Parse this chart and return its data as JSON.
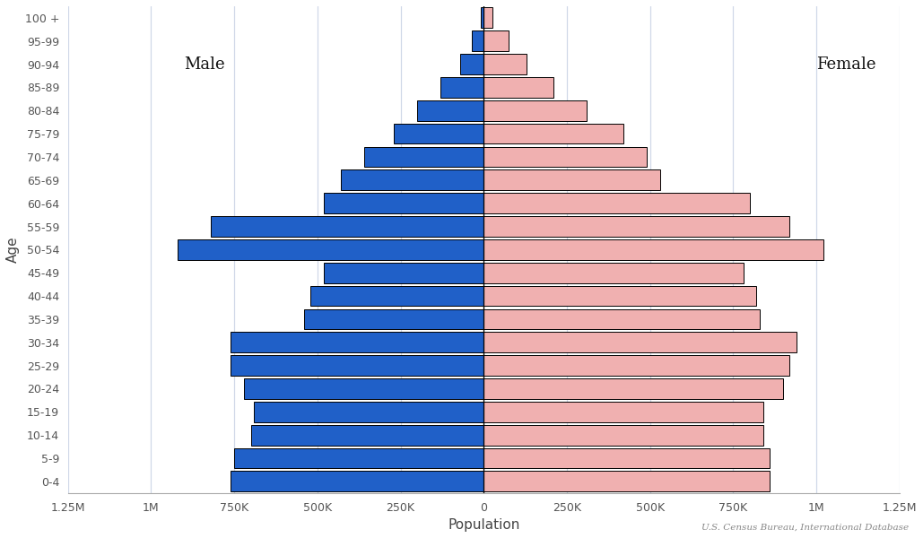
{
  "age_groups": [
    "0-4",
    "5-9",
    "10-14",
    "15-19",
    "20-24",
    "25-29",
    "30-34",
    "35-39",
    "40-44",
    "45-49",
    "50-54",
    "55-59",
    "60-64",
    "65-69",
    "70-74",
    "75-79",
    "80-84",
    "85-89",
    "90-94",
    "95-99",
    "100 +"
  ],
  "male": [
    760000,
    750000,
    700000,
    690000,
    720000,
    760000,
    760000,
    540000,
    520000,
    480000,
    920000,
    820000,
    480000,
    430000,
    360000,
    270000,
    200000,
    130000,
    70000,
    35000,
    10000
  ],
  "female": [
    860000,
    860000,
    840000,
    840000,
    900000,
    920000,
    940000,
    830000,
    820000,
    780000,
    1020000,
    920000,
    800000,
    530000,
    490000,
    420000,
    310000,
    210000,
    130000,
    75000,
    25000
  ],
  "male_color": "#2060c8",
  "female_color": "#f0b0b0",
  "bar_edge_color": "#000000",
  "xlabel": "Population",
  "ylabel": "Age",
  "xlim": 1250000,
  "male_label": "Male",
  "female_label": "Female",
  "source_text": "U.S. Census Bureau, International Database",
  "background_color": "#ffffff",
  "grid_color": "#d0d8e8"
}
